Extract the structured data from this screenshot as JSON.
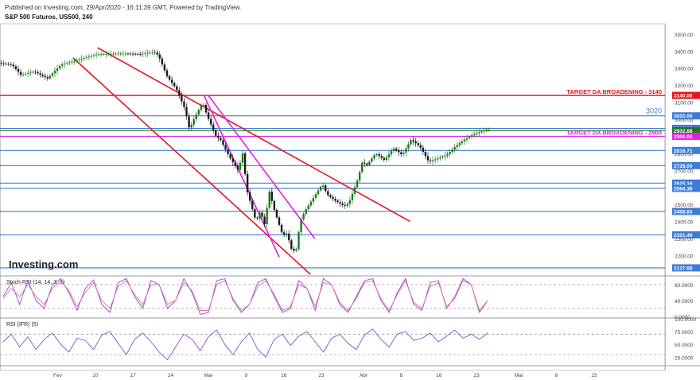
{
  "header": {
    "published": "Published on Investing.com, 29/Apr/2020 - 16:11:39 GMT, Powered by TradingView.",
    "symbol": "S&P 500 Futuros, US500, 240"
  },
  "watermark": "Investing.com",
  "colors": {
    "up": "#1f7a1f",
    "down": "#1a1a1a",
    "red": "#e8141c",
    "magenta": "#e020e0",
    "blue": "#3a6fd8",
    "level": "#3d7bd6",
    "osc": "#8a4fc4"
  },
  "chart_data": [
    {
      "type": "candlestick",
      "x_ticks": [
        "Fev",
        "10",
        "17",
        "24",
        "Mar",
        "9",
        "16",
        "23",
        "Abr",
        "8",
        "16",
        "23",
        "Mai",
        "8",
        "15"
      ],
      "ylim": [
        2090,
        3560
      ],
      "y_ticks": [
        2200,
        2300,
        2400,
        2500,
        2600,
        2700,
        2800,
        2900,
        3000,
        3100,
        3200,
        3300,
        3400,
        3500
      ],
      "price_path": [
        [
          0,
          3330
        ],
        [
          6,
          3320
        ],
        [
          10,
          3260
        ],
        [
          16,
          3280
        ],
        [
          22,
          3240
        ],
        [
          28,
          3320
        ],
        [
          36,
          3350
        ],
        [
          44,
          3380
        ],
        [
          52,
          3385
        ],
        [
          58,
          3385
        ],
        [
          64,
          3382
        ],
        [
          70,
          3396
        ],
        [
          72,
          3375
        ],
        [
          76,
          3250
        ],
        [
          80,
          3180
        ],
        [
          84,
          3060
        ],
        [
          86,
          2940
        ],
        [
          88,
          3000
        ],
        [
          92,
          3100
        ],
        [
          94,
          3020
        ],
        [
          98,
          2900
        ],
        [
          100,
          2880
        ],
        [
          104,
          2780
        ],
        [
          108,
          2700
        ],
        [
          110,
          2800
        ],
        [
          112,
          2580
        ],
        [
          116,
          2400
        ],
        [
          118,
          2460
        ],
        [
          120,
          2380
        ],
        [
          122,
          2580
        ],
        [
          124,
          2480
        ],
        [
          126,
          2400
        ],
        [
          128,
          2320
        ],
        [
          130,
          2330
        ],
        [
          132,
          2240
        ],
        [
          134,
          2220
        ],
        [
          136,
          2400
        ],
        [
          138,
          2460
        ],
        [
          142,
          2540
        ],
        [
          146,
          2620
        ],
        [
          148,
          2560
        ],
        [
          152,
          2520
        ],
        [
          156,
          2490
        ],
        [
          158,
          2510
        ],
        [
          162,
          2650
        ],
        [
          164,
          2750
        ],
        [
          166,
          2730
        ],
        [
          170,
          2800
        ],
        [
          174,
          2760
        ],
        [
          178,
          2830
        ],
        [
          182,
          2790
        ],
        [
          186,
          2880
        ],
        [
          190,
          2840
        ],
        [
          194,
          2750
        ],
        [
          198,
          2770
        ],
        [
          202,
          2790
        ],
        [
          206,
          2840
        ],
        [
          210,
          2880
        ],
        [
          214,
          2910
        ],
        [
          218,
          2930
        ],
        [
          220,
          2940
        ]
      ],
      "trend_lines": [
        {
          "color": "red",
          "points": [
            [
              44,
              3420
            ],
            [
              185,
              2400
            ]
          ]
        },
        {
          "color": "red",
          "points": [
            [
              33,
              3360
            ],
            [
              140,
              2090
            ]
          ]
        },
        {
          "color": "magenta",
          "points": [
            [
              94,
              3140
            ],
            [
              142,
              2300
            ]
          ]
        },
        {
          "color": "magenta",
          "points": [
            [
              92,
              3140
            ],
            [
              126,
              2190
            ]
          ]
        }
      ],
      "levels": [
        {
          "value": 3140,
          "label": "3140.00",
          "color": "red"
        },
        {
          "value": 3020,
          "label": "3020.00",
          "color": "blue"
        },
        {
          "value": 2946.38,
          "label": "2946.38",
          "color": "blue"
        },
        {
          "value": 2932.88,
          "label": "2932.88",
          "color": "green"
        },
        {
          "value": 2900,
          "label": "2900.00",
          "color": "magenta"
        },
        {
          "value": 2816.71,
          "label": "2816.71",
          "color": "blue"
        },
        {
          "value": 2728,
          "label": "2728.00",
          "color": "blue"
        },
        {
          "value": 2625.16,
          "label": "2625.16",
          "color": "blue"
        },
        {
          "value": 2594.38,
          "label": "2594.38",
          "color": "blue"
        },
        {
          "value": 2458.83,
          "label": "2458.83",
          "color": "blue"
        },
        {
          "value": 2321.49,
          "label": "2321.49",
          "color": "blue"
        },
        {
          "value": 2127.68,
          "label": "2127.68",
          "color": "blue"
        }
      ],
      "annotations": [
        {
          "text": "TARGET DA BROADENING - 3140",
          "y": 3140,
          "color": "red"
        },
        {
          "text": "3020",
          "y": 3020,
          "color": "blue"
        },
        {
          "text": "TARGET DA BROADENING - 2900",
          "y": 2900,
          "color": "magenta"
        }
      ]
    },
    {
      "type": "line",
      "title": "Stoch RSI (14, 14, 3, 3)",
      "ylim": [
        0,
        100
      ],
      "y_ticks": [
        0,
        40,
        80
      ],
      "y_tick_labels": [
        "0.0000",
        "40.0000",
        "80.0000"
      ],
      "bands": [
        20,
        80
      ],
      "series": [
        {
          "color": "purple",
          "values": [
            50,
            85,
            30,
            90,
            40,
            20,
            80,
            95,
            60,
            15,
            70,
            92,
            30,
            10,
            85,
            95,
            50,
            20,
            90,
            80,
            20,
            40,
            95,
            60,
            5,
            10,
            90,
            95,
            40,
            10,
            30,
            85,
            95,
            50,
            10,
            20,
            90,
            70,
            15,
            95,
            80,
            30,
            10,
            50,
            90,
            95,
            40,
            10,
            60,
            95,
            30,
            15,
            85,
            90,
            20,
            50,
            95,
            80,
            10,
            40
          ]
        },
        {
          "color": "pink",
          "values": [
            45,
            70,
            50,
            80,
            50,
            30,
            70,
            90,
            65,
            25,
            60,
            85,
            40,
            20,
            75,
            90,
            55,
            30,
            80,
            80,
            30,
            40,
            85,
            65,
            15,
            15,
            80,
            90,
            45,
            15,
            30,
            75,
            90,
            55,
            15,
            25,
            80,
            70,
            25,
            85,
            80,
            35,
            15,
            45,
            85,
            90,
            45,
            15,
            55,
            90,
            35,
            20,
            75,
            85,
            25,
            45,
            90,
            80,
            15,
            40
          ]
        }
      ]
    },
    {
      "type": "line",
      "title": "RSI (IFR) (5)",
      "ylim": [
        10,
        100
      ],
      "y_ticks": [
        25,
        50,
        75,
        100
      ],
      "y_tick_labels": [
        "25.0000",
        "50.0000",
        "75.0000",
        "100.0000"
      ],
      "bands": [
        30,
        70
      ],
      "series": [
        {
          "color": "purple",
          "values": [
            55,
            70,
            45,
            65,
            40,
            60,
            72,
            50,
            35,
            62,
            58,
            40,
            68,
            75,
            52,
            30,
            60,
            72,
            55,
            35,
            20,
            45,
            70,
            60,
            38,
            65,
            78,
            50,
            30,
            55,
            72,
            40,
            25,
            60,
            70,
            48,
            66,
            75,
            55,
            35,
            62,
            70,
            52,
            40,
            68,
            80,
            60,
            45,
            70,
            75,
            58,
            62,
            72,
            55,
            66,
            78,
            62,
            70,
            60,
            72
          ]
        }
      ]
    }
  ]
}
